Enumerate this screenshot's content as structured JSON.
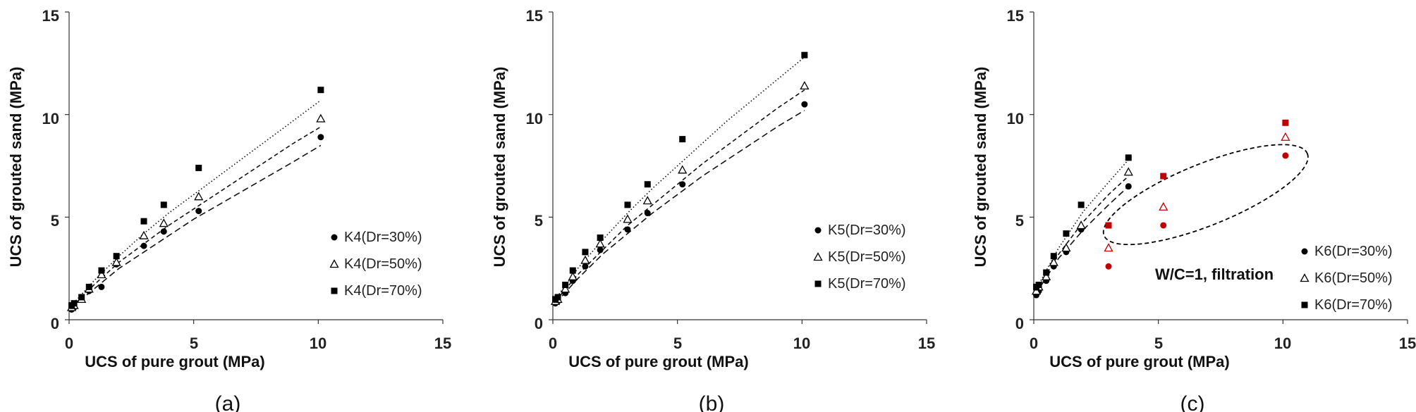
{
  "chart_data": [
    {
      "type": "scatter",
      "panel_label": "(a)",
      "xlabel": "UCS of pure grout (MPa)",
      "ylabel": "UCS of grouted sand  (MPa)",
      "xlim": [
        0,
        15
      ],
      "ylim": [
        0,
        15
      ],
      "xticks": [
        0,
        5,
        10,
        15
      ],
      "yticks": [
        0,
        5,
        10,
        15
      ],
      "legend_position": "bottom-right",
      "series": [
        {
          "name": "K4(Dr=30%)",
          "marker": "circle",
          "color": "#000000",
          "x": [
            0.1,
            0.2,
            0.5,
            0.8,
            1.3,
            1.9,
            3.0,
            3.8,
            5.2,
            10.1
          ],
          "y": [
            0.5,
            0.6,
            1.0,
            1.4,
            1.6,
            2.7,
            3.6,
            4.3,
            5.3,
            8.9
          ],
          "fit": {
            "style": "dashed-long",
            "x": [
              0.1,
              1,
              2,
              3,
              4,
              5,
              6,
              7,
              8,
              9,
              10.1
            ],
            "y": [
              0.6,
              1.5,
              2.5,
              3.3,
              4.1,
              4.9,
              5.6,
              6.3,
              7.0,
              7.7,
              8.5
            ]
          }
        },
        {
          "name": "K4(Dr=50%)",
          "marker": "triangle-open",
          "color": "#000000",
          "x": [
            0.1,
            0.2,
            0.5,
            0.8,
            1.3,
            1.9,
            3.0,
            3.8,
            5.2,
            10.1
          ],
          "y": [
            0.6,
            0.7,
            1.0,
            1.5,
            2.2,
            2.8,
            4.1,
            4.7,
            6.0,
            9.8
          ],
          "fit": {
            "style": "dashed",
            "x": [
              0.1,
              1,
              2,
              3,
              4,
              5,
              6,
              7,
              8,
              9,
              10.1
            ],
            "y": [
              0.6,
              1.7,
              2.8,
              3.7,
              4.6,
              5.4,
              6.2,
              7.0,
              7.8,
              8.6,
              9.4
            ]
          }
        },
        {
          "name": "K4(Dr=70%)",
          "marker": "square",
          "color": "#000000",
          "x": [
            0.1,
            0.2,
            0.5,
            0.8,
            1.3,
            1.9,
            3.0,
            3.8,
            5.2,
            10.1
          ],
          "y": [
            0.7,
            0.8,
            1.1,
            1.6,
            2.4,
            3.1,
            4.8,
            5.6,
            7.4,
            11.2
          ],
          "fit": {
            "style": "dotted",
            "x": [
              0.1,
              1,
              2,
              3,
              4,
              5,
              6,
              7,
              8,
              9,
              10.1
            ],
            "y": [
              0.7,
              1.9,
              3.1,
              4.2,
              5.2,
              6.1,
              7.0,
              7.9,
              8.8,
              9.7,
              10.7
            ]
          }
        }
      ],
      "annotations": []
    },
    {
      "type": "scatter",
      "panel_label": "(b)",
      "xlabel": "UCS of pure grout (MPa)",
      "ylabel": "UCS of grouted sand (MPa)",
      "xlim": [
        0,
        15
      ],
      "ylim": [
        0,
        15
      ],
      "xticks": [
        0,
        5,
        10,
        15
      ],
      "yticks": [
        0,
        5,
        10,
        15
      ],
      "legend_position": "bottom-right",
      "series": [
        {
          "name": "K5(Dr=30%)",
          "marker": "circle",
          "color": "#000000",
          "x": [
            0.1,
            0.2,
            0.5,
            0.8,
            1.3,
            1.9,
            3.0,
            3.8,
            5.2,
            10.1
          ],
          "y": [
            0.8,
            0.9,
            1.3,
            1.9,
            2.6,
            3.4,
            4.4,
            5.2,
            6.6,
            10.5
          ],
          "fit": {
            "style": "dashed-long",
            "x": [
              0.1,
              1,
              2,
              3,
              4,
              5,
              6,
              7,
              8,
              9,
              10.1
            ],
            "y": [
              0.8,
              2.0,
              3.2,
              4.2,
              5.2,
              6.1,
              7.0,
              7.8,
              8.6,
              9.4,
              10.2
            ]
          }
        },
        {
          "name": "K5(Dr=50%)",
          "marker": "triangle-open",
          "color": "#000000",
          "x": [
            0.1,
            0.2,
            0.5,
            0.8,
            1.3,
            1.9,
            3.0,
            3.8,
            5.2,
            10.1
          ],
          "y": [
            0.9,
            1.0,
            1.5,
            2.1,
            2.9,
            3.7,
            4.9,
            5.8,
            7.3,
            11.4
          ],
          "fit": {
            "style": "dashed",
            "x": [
              0.1,
              1,
              2,
              3,
              4,
              5,
              6,
              7,
              8,
              9,
              10.1
            ],
            "y": [
              0.9,
              2.2,
              3.4,
              4.6,
              5.6,
              6.6,
              7.6,
              8.5,
              9.4,
              10.3,
              11.2
            ]
          }
        },
        {
          "name": "K5(Dr=70%)",
          "marker": "square",
          "color": "#000000",
          "x": [
            0.1,
            0.2,
            0.5,
            0.8,
            1.3,
            1.9,
            3.0,
            3.8,
            5.2,
            10.1
          ],
          "y": [
            1.0,
            1.1,
            1.7,
            2.4,
            3.3,
            4.0,
            5.6,
            6.6,
            8.8,
            12.9
          ],
          "fit": {
            "style": "dotted",
            "x": [
              0.1,
              1,
              2,
              3,
              4,
              5,
              6,
              7,
              8,
              9,
              10.1
            ],
            "y": [
              1.0,
              2.5,
              3.9,
              5.2,
              6.4,
              7.5,
              8.6,
              9.7,
              10.7,
              11.7,
              12.8
            ]
          }
        }
      ],
      "annotations": []
    },
    {
      "type": "scatter",
      "panel_label": "(c)",
      "xlabel": "UCS of pure grout (MPa)",
      "ylabel": "UCS of grouted sand (MPa)",
      "xlim": [
        0,
        15
      ],
      "ylim": [
        0,
        15
      ],
      "xticks": [
        0,
        5,
        10,
        15
      ],
      "yticks": [
        0,
        5,
        10,
        15
      ],
      "legend_position": "bottom-right",
      "series": [
        {
          "name": "K6(Dr=30%)",
          "marker": "circle",
          "color": "#000000",
          "x": [
            0.1,
            0.2,
            0.5,
            0.8,
            1.3,
            1.9,
            3.8
          ],
          "y": [
            1.2,
            1.4,
            1.9,
            2.6,
            3.3,
            4.4,
            6.5
          ],
          "fit": {
            "style": "dashed-long",
            "x": [
              0.1,
              1,
              2,
              3,
              3.8
            ],
            "y": [
              1.3,
              3.0,
              4.4,
              5.6,
              6.5
            ]
          }
        },
        {
          "name": "K6(Dr=50%)",
          "marker": "triangle-open",
          "color": "#000000",
          "x": [
            0.1,
            0.2,
            0.5,
            0.8,
            1.3,
            1.9,
            3.8
          ],
          "y": [
            1.4,
            1.6,
            2.1,
            2.8,
            3.5,
            4.6,
            7.2
          ],
          "fit": {
            "style": "dashed",
            "x": [
              0.1,
              1,
              2,
              3,
              3.8
            ],
            "y": [
              1.4,
              3.2,
              4.8,
              6.1,
              7.0
            ]
          }
        },
        {
          "name": "K6(Dr=70%)",
          "marker": "square",
          "color": "#000000",
          "x": [
            0.1,
            0.2,
            0.5,
            0.8,
            1.3,
            1.9,
            3.8
          ],
          "y": [
            1.6,
            1.7,
            2.3,
            3.1,
            4.2,
            5.6,
            7.9
          ],
          "fit": {
            "style": "dotted",
            "x": [
              0.1,
              1,
              2,
              3,
              3.8
            ],
            "y": [
              1.5,
              3.5,
              5.3,
              6.7,
              7.8
            ]
          }
        }
      ],
      "outlier_points": [
        {
          "marker": "circle",
          "color": "#c00000",
          "x": [
            3.0,
            5.2,
            10.1
          ],
          "y": [
            2.6,
            4.6,
            8.0
          ]
        },
        {
          "marker": "triangle-open",
          "color": "#c00000",
          "x": [
            3.0,
            5.2,
            10.1
          ],
          "y": [
            3.5,
            5.5,
            8.9
          ]
        },
        {
          "marker": "square",
          "color": "#c00000",
          "x": [
            3.0,
            5.2,
            10.1
          ],
          "y": [
            4.6,
            7.0,
            9.6
          ]
        }
      ],
      "ellipse": {
        "cx": 6.9,
        "cy": 6.1,
        "rx": 4.4,
        "ry": 1.5,
        "angle_deg": 22
      },
      "annotations": [
        "W/C=1, filtration"
      ]
    }
  ]
}
